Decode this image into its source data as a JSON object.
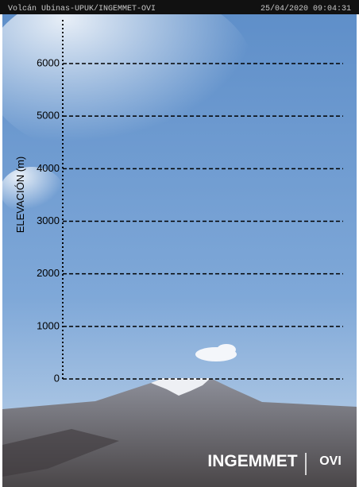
{
  "header": {
    "camera": "Volcán Ubinas-UPUK/INGEMMET-OVI",
    "timestamp": "25/04/2020 09:04:31"
  },
  "scale": {
    "label": "ELEVACIÓN (m)",
    "ticks": [
      0,
      1000,
      2000,
      3000,
      4000,
      5000,
      6000
    ]
  },
  "logos": {
    "ingemmet": "INGEMMET",
    "ovi": "OVI"
  }
}
